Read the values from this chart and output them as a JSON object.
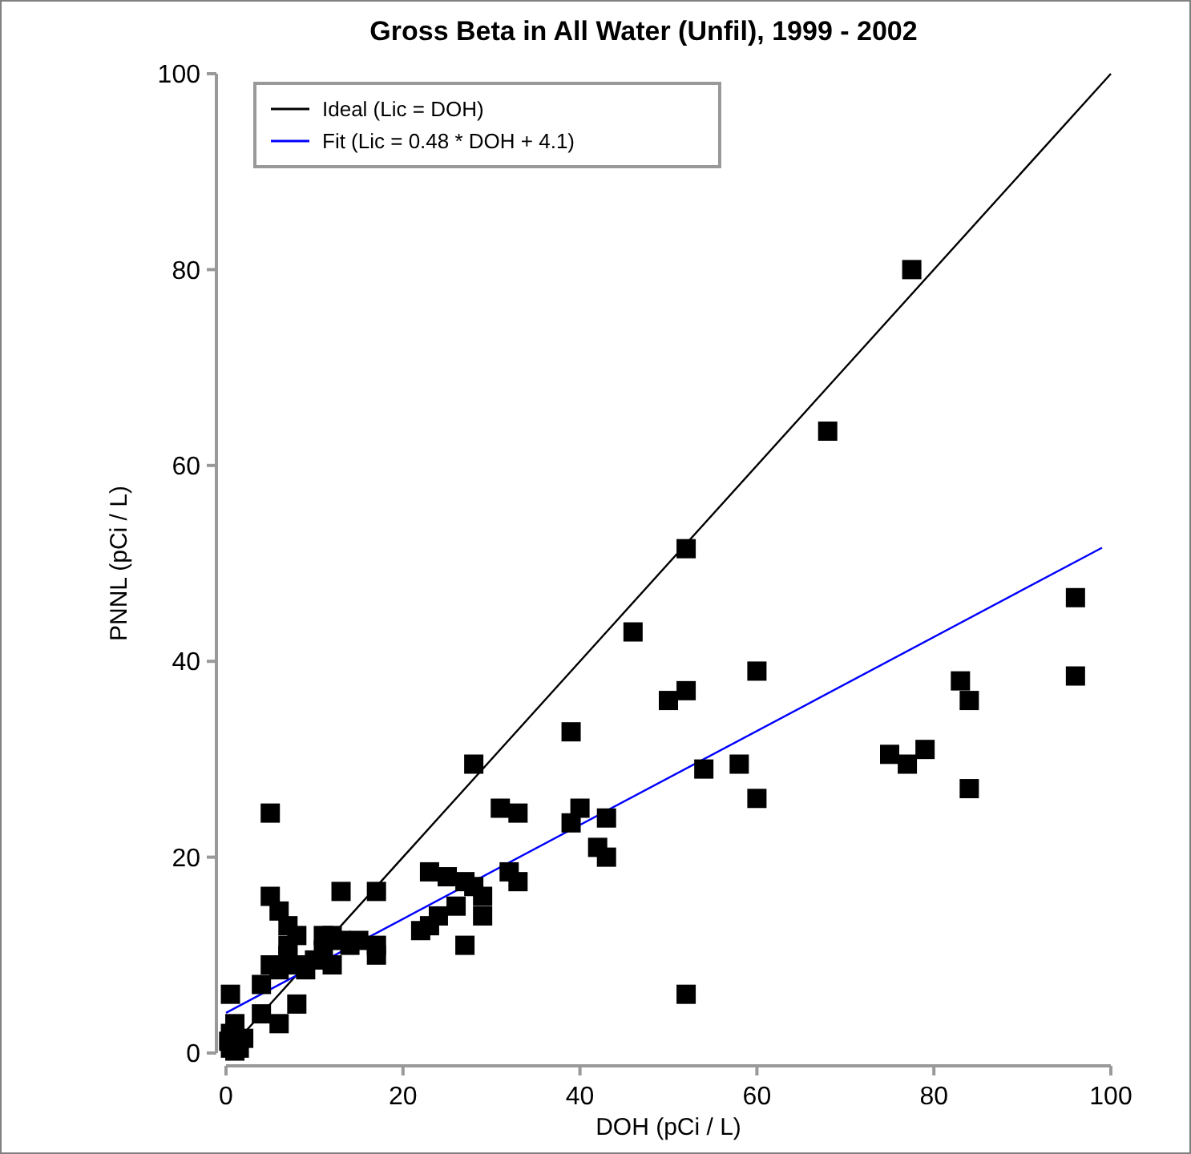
{
  "chart_data": {
    "type": "scatter",
    "title": "Gross Beta in All Water (Unfil), 1999 - 2002",
    "xlabel": "DOH (pCi / L)",
    "ylabel": "PNNL (pCi / L)",
    "xlim": [
      0,
      100
    ],
    "ylim": [
      0,
      100
    ],
    "xticks": [
      0,
      20,
      40,
      60,
      80,
      100
    ],
    "yticks": [
      0,
      20,
      40,
      60,
      80,
      100
    ],
    "legend": "top left",
    "series": [
      {
        "name": "Ideal (Lic = DOH)",
        "type": "line",
        "color": "#000000",
        "x": [
          0,
          100
        ],
        "values": [
          0,
          100
        ]
      },
      {
        "name": "Fit (Lic = 0.48 * DOH + 4.1)",
        "type": "line",
        "color": "#0000ff",
        "x": [
          0,
          99
        ],
        "values": [
          4.1,
          51.6
        ]
      },
      {
        "marker": "square",
        "color": "#000000",
        "x": [
          77.5,
          68,
          52,
          46,
          39,
          60,
          52,
          50,
          96,
          96,
          83,
          84,
          75,
          77,
          79,
          84,
          58,
          54,
          60,
          52,
          40,
          39,
          42,
          43,
          43,
          28,
          31,
          33,
          33,
          32,
          28,
          27,
          26,
          27,
          29,
          29,
          25,
          23,
          22,
          23,
          24,
          17,
          17,
          17,
          13,
          13,
          14,
          12,
          11,
          10,
          8,
          8,
          8,
          7,
          7,
          6,
          6,
          6,
          5,
          5,
          5,
          4,
          1,
          0.5,
          0.5,
          1.5,
          2,
          0.5,
          0.3,
          1,
          4,
          7,
          11,
          15,
          12,
          9
        ],
        "values": [
          80,
          63.5,
          51.5,
          43,
          32.8,
          39,
          37,
          36,
          46.5,
          38.5,
          38,
          36,
          30.5,
          29.5,
          31,
          27,
          29.5,
          29,
          26,
          6,
          25,
          23.5,
          21,
          20,
          24,
          29.5,
          25,
          24.5,
          17.5,
          18.5,
          17,
          11,
          15,
          17.5,
          14,
          16,
          18,
          18.5,
          12.5,
          13,
          14,
          16.5,
          11,
          10,
          16.5,
          11.5,
          11,
          9,
          10.5,
          9.5,
          9,
          5,
          12,
          13,
          11,
          14.5,
          8.5,
          3,
          24.5,
          16,
          9,
          4,
          3,
          6,
          0.5,
          0.5,
          1.5,
          2,
          1.2,
          0.2,
          7,
          10,
          12,
          11.5,
          12,
          8.5
        ]
      }
    ]
  }
}
